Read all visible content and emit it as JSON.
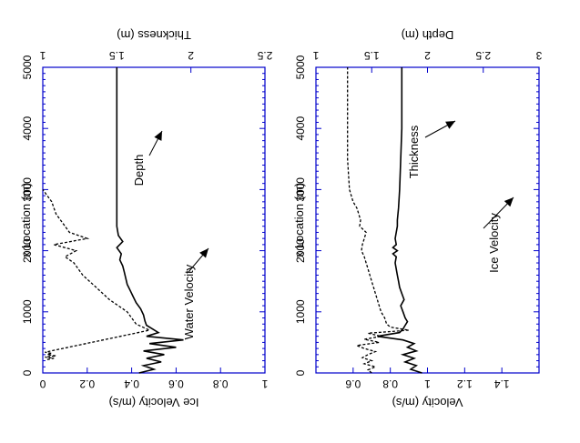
{
  "chart_data": [
    {
      "type": "line",
      "xlabel": "x Location (m)",
      "ylabel": "Depth (m)",
      "y2label": "Velocity (m/s)",
      "xlim": [
        0,
        5000
      ],
      "ylim": [
        1,
        3
      ],
      "y2lim": [
        0.4,
        1.6
      ],
      "x_ticks": [
        "0",
        "1000",
        "2000",
        "3000",
        "4000",
        "5000"
      ],
      "y_ticks": [
        "1",
        "1.5",
        "2",
        "2.5",
        "3"
      ],
      "y2_ticks": [
        "0.6",
        "0.8",
        "1",
        "1.2",
        "1.4"
      ],
      "series": [
        {
          "name": "Depth",
          "axis": "left",
          "style": "solid",
          "x": [
            0,
            60,
            120,
            180,
            240,
            300,
            360,
            420,
            480,
            540,
            600,
            660,
            720,
            780,
            840,
            900,
            1000,
            1100,
            1200,
            1300,
            1400,
            1500,
            1600,
            1700,
            1800,
            1900,
            1950,
            2000,
            2050,
            2100,
            2200,
            2300,
            2400,
            2500,
            2700,
            3000,
            3500,
            4000,
            4500,
            5000
          ],
          "y": [
            1.95,
            1.85,
            1.9,
            1.8,
            1.88,
            1.78,
            1.9,
            1.82,
            1.88,
            1.78,
            1.55,
            1.75,
            1.78,
            1.8,
            1.82,
            1.8,
            1.78,
            1.76,
            1.79,
            1.77,
            1.75,
            1.74,
            1.73,
            1.72,
            1.71,
            1.72,
            1.69,
            1.73,
            1.69,
            1.72,
            1.71,
            1.72,
            1.73,
            1.73,
            1.74,
            1.75,
            1.76,
            1.77,
            1.77,
            1.77
          ]
        },
        {
          "name": "Water Velocity",
          "axis": "right",
          "style": "dashed",
          "x": [
            0,
            50,
            100,
            150,
            200,
            250,
            300,
            350,
            400,
            450,
            500,
            550,
            600,
            650,
            700,
            750,
            800,
            900,
            1000,
            1100,
            1200,
            1300,
            1400,
            1500,
            1600,
            1700,
            1800,
            1900,
            2000,
            2100,
            2200,
            2300,
            2400,
            2500,
            2600,
            2700,
            2800,
            3000,
            3500,
            4000,
            4500,
            5000
          ],
          "y": [
            0.7,
            0.68,
            0.72,
            0.66,
            0.7,
            0.65,
            0.68,
            0.72,
            0.66,
            0.62,
            0.74,
            0.66,
            0.75,
            0.68,
            0.9,
            0.8,
            0.78,
            0.77,
            0.75,
            0.74,
            0.73,
            0.72,
            0.71,
            0.7,
            0.69,
            0.68,
            0.67,
            0.66,
            0.645,
            0.65,
            0.66,
            0.67,
            0.635,
            0.64,
            0.63,
            0.62,
            0.6,
            0.58,
            0.57,
            0.57,
            0.57,
            0.57
          ]
        }
      ],
      "annotations": [
        "Depth",
        "Water Velocity"
      ]
    },
    {
      "type": "line",
      "xlabel": "x Location (m)",
      "ylabel": "Thickness (m)",
      "y2label": "Ice Velocity (m/s)",
      "xlim": [
        0,
        5000
      ],
      "ylim": [
        1,
        2.5
      ],
      "y2lim": [
        0,
        1
      ],
      "x_ticks": [
        "0",
        "1000",
        "2000",
        "3000",
        "4000",
        "5000"
      ],
      "y_ticks": [
        "1",
        "1.5",
        "2",
        "2.5"
      ],
      "y2_ticks": [
        "0",
        "0.2",
        "0.4",
        "0.6",
        "0.8",
        "1"
      ],
      "series": [
        {
          "name": "Thickness",
          "axis": "left",
          "style": "solid",
          "x": [
            0,
            60,
            120,
            180,
            240,
            300,
            360,
            420,
            480,
            540,
            600,
            660,
            720,
            780,
            850,
            950,
            1050,
            1150,
            1250,
            1350,
            1450,
            1550,
            1650,
            1750,
            1850,
            1950,
            2050,
            2150,
            2250,
            2400,
            2600,
            3000,
            3500,
            4000,
            4500,
            5000
          ],
          "y": [
            1.65,
            1.75,
            1.68,
            1.8,
            1.7,
            1.82,
            1.68,
            1.9,
            1.72,
            1.95,
            1.7,
            1.78,
            1.74,
            1.7,
            1.69,
            1.68,
            1.66,
            1.63,
            1.61,
            1.59,
            1.57,
            1.56,
            1.55,
            1.54,
            1.52,
            1.53,
            1.5,
            1.54,
            1.51,
            1.5,
            1.5,
            1.5,
            1.5,
            1.5,
            1.5,
            1.5
          ]
        },
        {
          "name": "Ice Velocity",
          "axis": "right",
          "style": "dashed",
          "x": [
            220,
            240,
            260,
            280,
            300,
            320,
            340,
            700,
            800,
            1000,
            1200,
            1400,
            1600,
            1800,
            1900,
            2000,
            2100,
            2200,
            2300,
            2400,
            2500,
            2600,
            2700,
            2800,
            2900,
            3000
          ],
          "y": [
            0.02,
            0.05,
            0.01,
            0.06,
            0.02,
            0.04,
            0.01,
            0.48,
            0.42,
            0.38,
            0.3,
            0.24,
            0.18,
            0.14,
            0.1,
            0.15,
            0.05,
            0.2,
            0.12,
            0.1,
            0.08,
            0.06,
            0.05,
            0.04,
            0.02,
            0.0
          ]
        }
      ],
      "annotations": [
        "Thickness",
        "Ice Velocity"
      ]
    }
  ]
}
